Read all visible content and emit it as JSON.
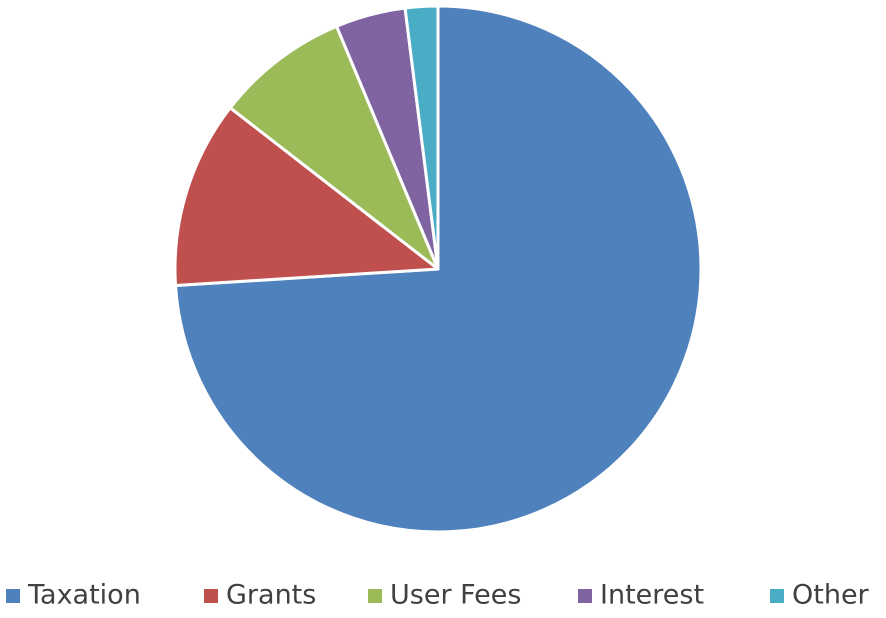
{
  "chart_data": {
    "type": "pie",
    "categories": [
      "Taxation",
      "Grants",
      "User Fees",
      "Interest",
      "Other"
    ],
    "values": [
      74,
      11.5,
      8.2,
      4.3,
      2.0
    ],
    "colors": [
      "#4f81bd",
      "#c0504d",
      "#9bbb59",
      "#8064a2",
      "#4bacc6"
    ],
    "legend": "bottom"
  }
}
